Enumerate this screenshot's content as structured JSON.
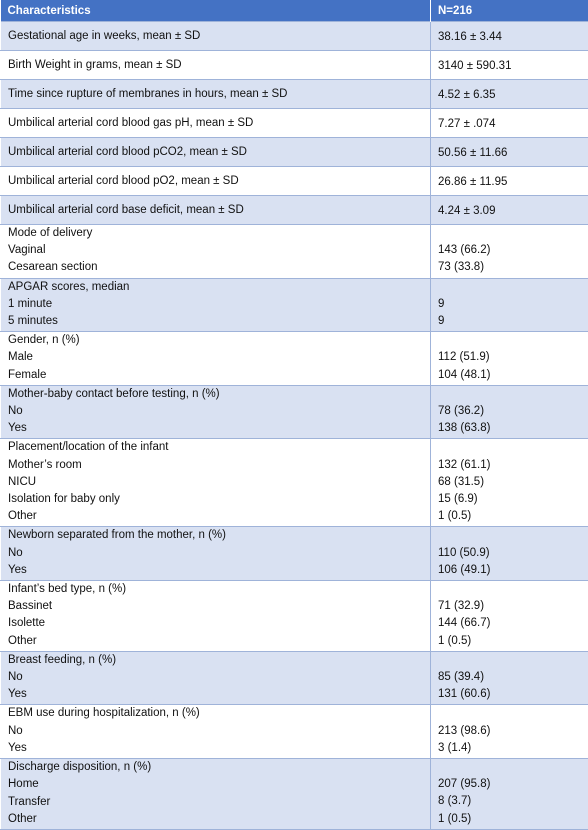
{
  "header": {
    "col1": "Characteristics",
    "col2": "N=216"
  },
  "rows": [
    {
      "type": "single",
      "label": "Gestational age in weeks, mean ± SD",
      "value": "38.16 ± 3.44"
    },
    {
      "type": "single",
      "label": "Birth Weight in grams, mean ± SD",
      "value": "3140 ± 590.31"
    },
    {
      "type": "single",
      "label": "Time since rupture of membranes in hours, mean ± SD",
      "value": "4.52 ± 6.35"
    },
    {
      "type": "single",
      "label": "Umbilical arterial cord blood gas pH, mean ± SD",
      "value": "7.27 ± .074"
    },
    {
      "type": "single",
      "label": "Umbilical arterial cord blood pCO2, mean ± SD",
      "value": "50.56 ± 11.66"
    },
    {
      "type": "single",
      "label": "Umbilical arterial cord blood pO2, mean ± SD",
      "value": "26.86 ± 11.95"
    },
    {
      "type": "single",
      "label": "Umbilical arterial cord base deficit, mean ± SD",
      "value": "4.24 ± 3.09"
    },
    {
      "type": "group",
      "title": "Mode of delivery",
      "items": [
        {
          "label": "Vaginal",
          "value": "143 (66.2)"
        },
        {
          "label": "Cesarean section",
          "value": "73 (33.8)"
        }
      ]
    },
    {
      "type": "group",
      "title": "APGAR scores, median",
      "items": [
        {
          "label": "1 minute",
          "value": "9"
        },
        {
          "label": "5 minutes",
          "value": "9"
        }
      ]
    },
    {
      "type": "group",
      "title": "Gender, n (%)",
      "items": [
        {
          "label": "Male",
          "value": "112 (51.9)"
        },
        {
          "label": "Female",
          "value": "104 (48.1)"
        }
      ]
    },
    {
      "type": "group",
      "title": "Mother-baby contact before testing, n (%)",
      "items": [
        {
          "label": "No",
          "value": "78 (36.2)"
        },
        {
          "label": "Yes",
          "value": "138 (63.8)"
        }
      ]
    },
    {
      "type": "group",
      "title": "Placement/location of the infant",
      "items": [
        {
          "label": "Mother’s room",
          "value": "132 (61.1)"
        },
        {
          "label": "NICU",
          "value": "68 (31.5)"
        },
        {
          "label": "Isolation for baby only",
          "value": "15 (6.9)"
        },
        {
          "label": "Other",
          "value": "1 (0.5)"
        }
      ]
    },
    {
      "type": "group",
      "title": "Newborn separated from the mother, n (%)",
      "items": [
        {
          "label": "No",
          "value": "110 (50.9)"
        },
        {
          "label": "Yes",
          "value": "106 (49.1)"
        }
      ]
    },
    {
      "type": "group",
      "title": "Infant’s bed type, n (%)",
      "items": [
        {
          "label": "Bassinet",
          "value": "71 (32.9)"
        },
        {
          "label": "Isolette",
          "value": "144 (66.7)"
        },
        {
          "label": "Other",
          "value": "1 (0.5)"
        }
      ]
    },
    {
      "type": "group",
      "title": "Breast feeding, n (%)",
      "items": [
        {
          "label": "No",
          "value": "85 (39.4)"
        },
        {
          "label": "Yes",
          "value": "131 (60.6)"
        }
      ]
    },
    {
      "type": "group",
      "title": "EBM use during hospitalization, n (%)",
      "items": [
        {
          "label": "No",
          "value": "213 (98.6)"
        },
        {
          "label": "Yes",
          "value": "3 (1.4)"
        }
      ]
    },
    {
      "type": "group",
      "title": "Discharge disposition, n (%)",
      "items": [
        {
          "label": "Home",
          "value": "207 (95.8)"
        },
        {
          "label": "Transfer",
          "value": "8 (3.7)"
        },
        {
          "label": "Other",
          "value": "1 (0.5)"
        }
      ]
    }
  ]
}
